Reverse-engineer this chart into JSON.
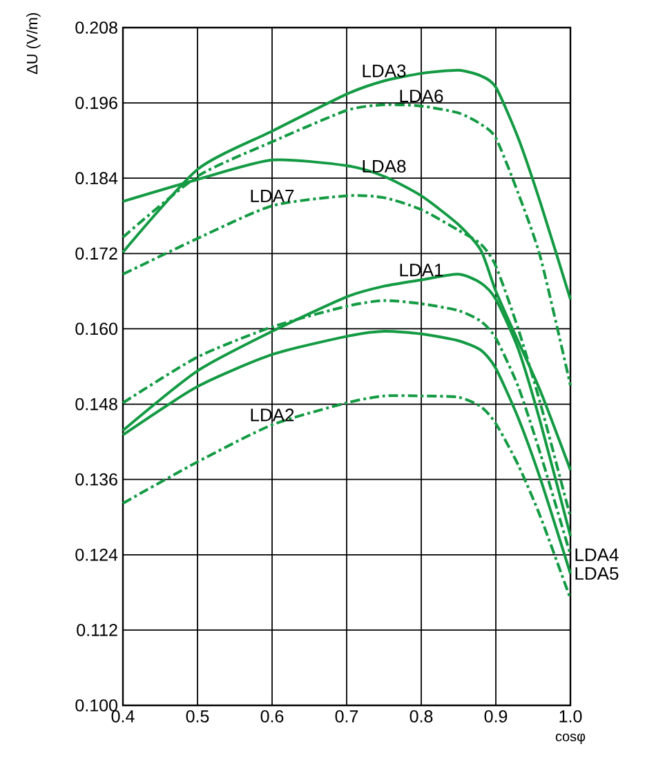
{
  "chart_data": {
    "type": "line",
    "xlabel": "cosφ",
    "ylabel": "ΔU (V/m)",
    "xlim": [
      0.4,
      1.0
    ],
    "ylim": [
      0.1,
      0.208
    ],
    "xticks": [
      0.4,
      0.5,
      0.6,
      0.7,
      0.8,
      0.9,
      {
        "value": 1.0,
        "label": "1.0"
      }
    ],
    "yticks": [
      {
        "value": 0.1,
        "label": "0.100"
      },
      {
        "value": 0.112,
        "label": "0.112"
      },
      {
        "value": 0.124,
        "label": "0.124"
      },
      {
        "value": 0.136,
        "label": "0.136"
      },
      {
        "value": 0.148,
        "label": "0.148"
      },
      {
        "value": 0.16,
        "label": "0.160"
      },
      {
        "value": 0.172,
        "label": "0.172"
      },
      {
        "value": 0.184,
        "label": "0.184"
      },
      {
        "value": 0.196,
        "label": "0.196"
      },
      {
        "value": 0.208,
        "label": "0.208"
      }
    ],
    "grid": true,
    "x": [
      0.4,
      0.5,
      0.6,
      0.7,
      0.75,
      0.8,
      0.85,
      0.88,
      0.9,
      0.93,
      0.96,
      1.0
    ],
    "series": [
      {
        "color": "#139a43",
        "line_style": "solid",
        "values": [
          0.1722,
          0.1854,
          0.1915,
          0.1974,
          0.1995,
          0.2007,
          0.2012,
          0.2003,
          0.1985,
          0.1904,
          0.18,
          0.1647
        ]
      },
      {
        "color": "#139a43",
        "line_style": "dashdot",
        "values": [
          0.1746,
          0.1843,
          0.1898,
          0.1948,
          0.1957,
          0.1955,
          0.1944,
          0.1926,
          0.1904,
          0.1816,
          0.1713,
          0.151
        ]
      },
      {
        "color": "#139a43",
        "line_style": "solid",
        "values": [
          0.1803,
          0.1838,
          0.1869,
          0.186,
          0.1843,
          0.1812,
          0.1766,
          0.1725,
          0.166,
          0.158,
          0.15,
          0.1375
        ]
      },
      {
        "color": "#139a43",
        "line_style": "dashdot",
        "values": [
          0.1687,
          0.1744,
          0.1796,
          0.1812,
          0.1809,
          0.179,
          0.1757,
          0.1735,
          0.17,
          0.16,
          0.148,
          0.13
        ]
      },
      {
        "color": "#139a43",
        "line_style": "solid",
        "values": [
          0.1438,
          0.1533,
          0.1596,
          0.1651,
          0.1668,
          0.1678,
          0.1687,
          0.1673,
          0.1647,
          0.1568,
          0.145,
          0.127
        ]
      },
      {
        "color": "#139a43",
        "line_style": "dashdot",
        "values": [
          0.1482,
          0.1555,
          0.1603,
          0.1636,
          0.1645,
          0.164,
          0.1629,
          0.1612,
          0.1585,
          0.1508,
          0.14,
          0.124
        ]
      },
      {
        "color": "#139a43",
        "line_style": "solid",
        "values": [
          0.1431,
          0.1508,
          0.1559,
          0.1588,
          0.1596,
          0.1592,
          0.1581,
          0.1566,
          0.1537,
          0.1458,
          0.136,
          0.121
        ]
      },
      {
        "color": "#139a43",
        "line_style": "dashdot",
        "values": [
          0.1322,
          0.1388,
          0.1447,
          0.1482,
          0.1493,
          0.1493,
          0.1491,
          0.1476,
          0.1449,
          0.1383,
          0.13,
          0.117
        ]
      }
    ],
    "annotations": [
      {
        "text": "LDA3",
        "x": 0.75,
        "y": 0.1995
      },
      {
        "text": "LDA6",
        "x": 0.8,
        "y": 0.1955
      },
      {
        "text": "LDA8",
        "x": 0.75,
        "y": 0.1843
      },
      {
        "text": "LDA7",
        "x": 0.6,
        "y": 0.1796
      },
      {
        "text": "LDA1",
        "x": 0.8,
        "y": 0.1678
      },
      {
        "text": "LDA2",
        "x": 0.6,
        "y": 0.1447
      },
      {
        "text": "LDA4",
        "x": 1.0,
        "y": 0.124
      },
      {
        "text": "LDA5",
        "x": 1.0,
        "y": 0.121
      }
    ]
  }
}
